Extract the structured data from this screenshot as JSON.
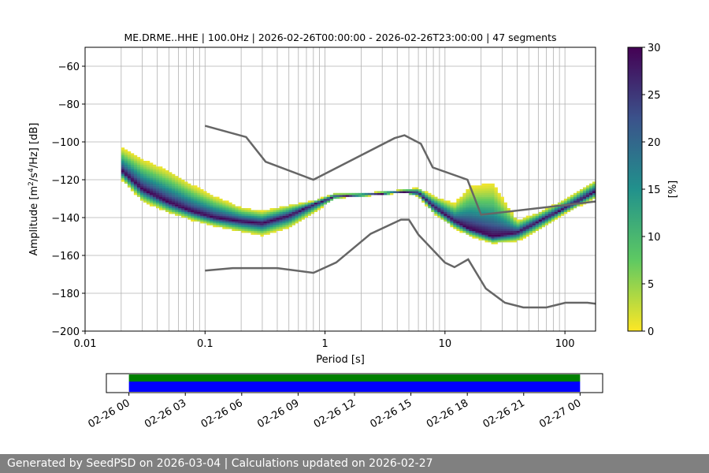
{
  "title": "ME.DRME..HHE | 100.0Hz | 2026-02-26T00:00:00 - 2026-02-26T23:00:00 | 47 segments",
  "footer": "Generated by SeedPSD on 2026-03-04 | Calculations updated on 2026-02-27",
  "chart_data": [
    {
      "type": "heatmap",
      "title": "ME.DRME..HHE | 100.0Hz | 2026-02-26T00:00:00 - 2026-02-26T23:00:00 | 47 segments",
      "xlabel": "Period [s]",
      "ylabel_parts": [
        "Amplitude [m",
        "2",
        "/s",
        "4",
        "/Hz] [dB]"
      ],
      "xscale": "log",
      "xlim": [
        0.01,
        180
      ],
      "ylim": [
        -200,
        -50
      ],
      "xticks": [
        0.01,
        0.1,
        1,
        10,
        100
      ],
      "xtick_labels": [
        "0.01",
        "0.1",
        "1",
        "10",
        "100"
      ],
      "yticks": [
        -200,
        -180,
        -160,
        -140,
        -120,
        -100,
        -80,
        -60
      ],
      "ytick_labels": [
        "−200",
        "−180",
        "−160",
        "−140",
        "−120",
        "−100",
        "−80",
        "−60"
      ],
      "grid": true,
      "colorbar": {
        "label": "[%]",
        "min": 0,
        "max": 30,
        "ticks": [
          0,
          5,
          10,
          15,
          20,
          25,
          30
        ],
        "tick_labels": [
          "0",
          "5",
          "10",
          "15",
          "20",
          "25",
          "30"
        ],
        "colors": [
          "#fde725",
          "#5ec962",
          "#21918c",
          "#3b528b",
          "#440154"
        ]
      },
      "reference_lines": {
        "color": "#666666",
        "nhnm": {
          "period": [
            0.1,
            0.22,
            0.32,
            0.8,
            3.8,
            4.6,
            6.3,
            7.9,
            15.4,
            20,
            180
          ],
          "db": [
            -91.5,
            -97.4,
            -110.5,
            -120,
            -98,
            -96.5,
            -101,
            -113.5,
            -120,
            -138.5,
            -131.5
          ]
        },
        "nlnm": {
          "period": [
            0.1,
            0.17,
            0.4,
            0.8,
            1.24,
            2.4,
            4.3,
            5,
            6,
            10,
            12,
            15.6,
            21.9,
            31.6,
            45,
            70,
            101,
            154,
            180
          ],
          "db": [
            -168,
            -166.7,
            -166.7,
            -169.2,
            -163.7,
            -148.6,
            -141.1,
            -141.1,
            -149,
            -163.8,
            -166.2,
            -162.1,
            -177.5,
            -185,
            -187.5,
            -187.5,
            -185,
            -185,
            -185.5
          ]
        }
      },
      "density_band": {
        "period": [
          0.02,
          0.03,
          0.05,
          0.08,
          0.12,
          0.2,
          0.3,
          0.5,
          0.8,
          1.2,
          2,
          3,
          4.5,
          6,
          8,
          12,
          16,
          25,
          40,
          60,
          100,
          180
        ],
        "low_db": [
          -120,
          -132,
          -138,
          -142,
          -145,
          -148,
          -150,
          -146,
          -138,
          -130,
          -129,
          -128,
          -127,
          -129,
          -138,
          -146,
          -150,
          -154,
          -153,
          -147,
          -138,
          -130
        ],
        "mode_db": [
          -115,
          -125,
          -132,
          -137,
          -140,
          -142,
          -143,
          -139,
          -133,
          -129,
          -128,
          -127.5,
          -126.5,
          -127,
          -134,
          -142,
          -146,
          -150,
          -148,
          -142,
          -135,
          -126
        ],
        "high_db": [
          -102,
          -108,
          -114,
          -122,
          -128,
          -134,
          -136,
          -133,
          -131,
          -127,
          -127,
          -126,
          -125,
          -124,
          -128,
          -132,
          -122,
          -120,
          -141,
          -137,
          -130,
          -120
        ],
        "peak_percent": 30
      }
    },
    {
      "type": "timeline",
      "x_tick_labels": [
        "02-26 00",
        "02-26 03",
        "02-26 06",
        "02-26 09",
        "02-26 12",
        "02-26 15",
        "02-26 18",
        "02-26 21",
        "02-27 00"
      ],
      "xlim_hours": [
        -1.2,
        25.2
      ],
      "segments": [
        {
          "color": "#008000",
          "start_hour": 0,
          "end_hour": 24
        },
        {
          "color": "#0000ff",
          "start_hour": 0,
          "end_hour": 24
        }
      ]
    }
  ]
}
